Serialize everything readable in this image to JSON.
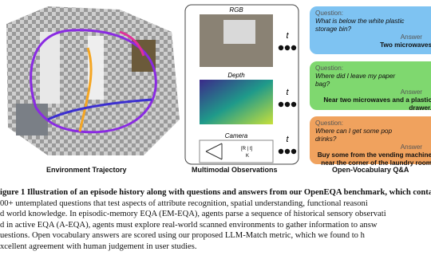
{
  "figure": {
    "panels": {
      "left": "Environment Trajectory",
      "middle": "Multimodal Observations",
      "right": "Open-Vocabulary Q&A"
    },
    "observations": {
      "rgb": "RGB",
      "depth": "Depth",
      "camera": "Camera",
      "time": [
        "t",
        "t",
        "t"
      ],
      "extrinsic": "[R | t]",
      "intrinsic": "K"
    },
    "qa": [
      {
        "question_label": "Question:",
        "question": "What is below the white plastic storage bin?",
        "answer_label": "Answer",
        "answer": "Two microwaves"
      },
      {
        "question_label": "Question:",
        "question": "Where did I leave my paper bag?",
        "answer_label": "Answer",
        "answer": "Near two microwaves and a plastic drawer."
      },
      {
        "question_label": "Question:",
        "question": "Where can I get some pop drinks?",
        "answer_label": "Answer",
        "answer": "Buy some from the vending machine near the corner of the laundry room"
      }
    ],
    "caption": [
      "igure 1  Illustration of an episode history along with questions and answers from our OpenEQA benchmark, which conta",
      "00+ untemplated questions that test aspects of attribute recognition, spatial understanding, functional reasoni",
      "d world knowledge. In episodic-memory EQA (EM-EQA), agents parse a sequence of historical sensory observati",
      "d in active EQA (A-EQA), agents must explore real-world scanned environments to gather information to answ",
      "uestions. Open vocabulary answers are scored using our proposed LLM-Match metric, which we found to h",
      "xcellent agreement with human judgement in user studies."
    ]
  }
}
